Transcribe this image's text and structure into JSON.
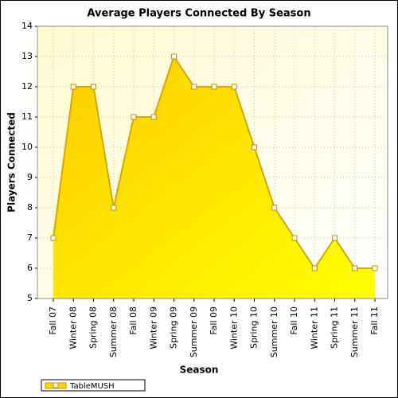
{
  "chart_data": {
    "type": "area",
    "title": "Average Players Connected By Season",
    "x_label": "Season",
    "y_label": "Players Connected",
    "categories": [
      "Fall 07",
      "Winter 08",
      "Spring 08",
      "Summer 08",
      "Fall 08",
      "Winter 09",
      "Spring 09",
      "Summer 09",
      "Fall 09",
      "Winter 10",
      "Spring 10",
      "Summer 10",
      "Fall 10",
      "Winter 11",
      "Spring 11",
      "Summer 11",
      "Fall 11"
    ],
    "series": [
      {
        "name": "TableMUSH",
        "color": "#ffd700",
        "values": [
          7,
          12,
          12,
          8,
          11,
          11,
          13,
          12,
          12,
          12,
          10,
          8,
          7,
          6,
          7,
          6,
          6
        ]
      }
    ],
    "ylim": [
      5,
      14
    ],
    "yticks": [
      5,
      6,
      7,
      8,
      9,
      10,
      11,
      12,
      13,
      14
    ],
    "grid": true,
    "legend": "bottom-left"
  }
}
